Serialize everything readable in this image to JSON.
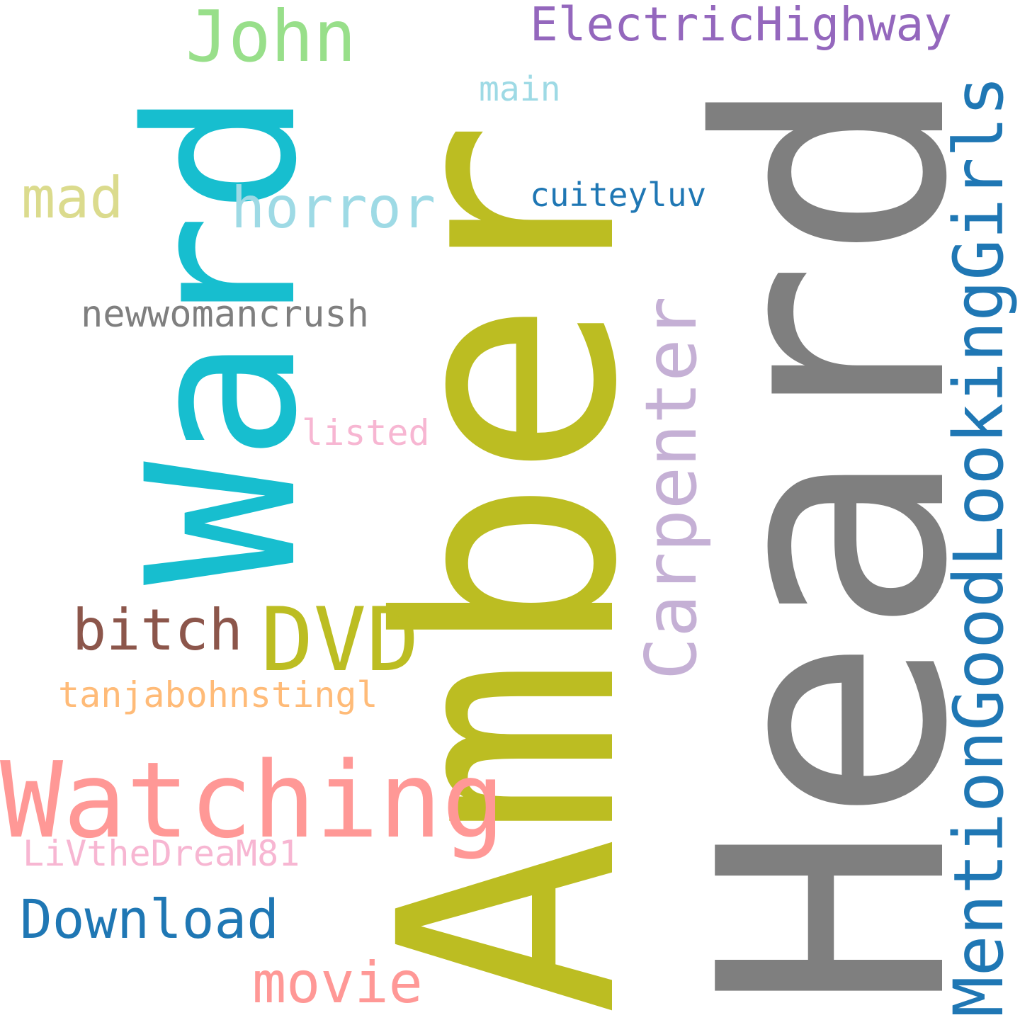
{
  "words": {
    "amber": {
      "text": "Amber",
      "color": "#bcbd22"
    },
    "heard": {
      "text": "Heard",
      "color": "#7f7f7f"
    },
    "ward": {
      "text": "Ward",
      "color": "#17becf"
    },
    "watching": {
      "text": "Watching",
      "color": "#ff9896"
    },
    "mention": {
      "text": "MentionGoodLookingGirls",
      "color": "#1f77b4"
    },
    "dvd": {
      "text": "DVD",
      "color": "#bcbd22"
    },
    "john": {
      "text": "John",
      "color": "#98df8a"
    },
    "carpenter": {
      "text": "Carpenter",
      "color": "#c5b0d5"
    },
    "electric": {
      "text": "ElectricHighway",
      "color": "#9467bd"
    },
    "horror": {
      "text": "horror",
      "color": "#9edae5"
    },
    "mad": {
      "text": "mad",
      "color": "#dbdb8d"
    },
    "bitch": {
      "text": "bitch",
      "color": "#8c564b"
    },
    "movie": {
      "text": "movie",
      "color": "#ff9896"
    },
    "download": {
      "text": "Download",
      "color": "#1f77b4"
    },
    "newwoman": {
      "text": "newwomancrush",
      "color": "#7f7f7f"
    },
    "tanja": {
      "text": "tanjabohnstingl",
      "color": "#ffbb78"
    },
    "livthe": {
      "text": "LiVtheDreaM81",
      "color": "#f7b6d2"
    },
    "listed": {
      "text": "listed",
      "color": "#f7b6d2"
    },
    "main": {
      "text": "main",
      "color": "#9edae5"
    },
    "cuiteyluv": {
      "text": "cuiteyluv",
      "color": "#1f77b4"
    }
  }
}
